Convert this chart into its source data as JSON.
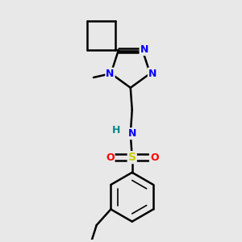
{
  "bg_color": "#e8e8e8",
  "bond_color": "#000000",
  "bond_width": 1.8,
  "atom_colors": {
    "N": "#0000ff",
    "O": "#ff0000",
    "S": "#cccc00",
    "H": "#008b8b",
    "C": "#000000"
  },
  "figsize": [
    3.0,
    3.0
  ],
  "dpi": 100,
  "xlim": [
    0.3,
    2.7
  ],
  "ylim": [
    0.1,
    3.1
  ]
}
